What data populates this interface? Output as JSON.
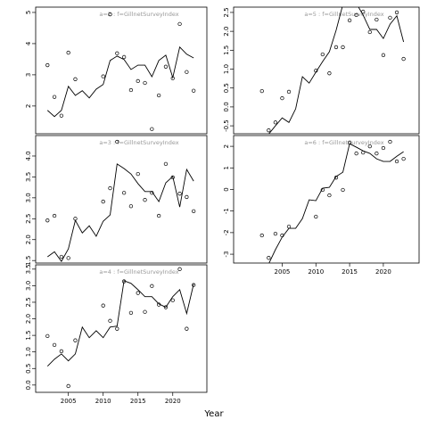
{
  "xlabel": "Year",
  "chart_data": [
    {
      "type": "line",
      "title": "a=2  :  f=GillnetSurveyIndex",
      "x": [
        2002,
        2003,
        2004,
        2005,
        2006,
        2007,
        2008,
        2009,
        2010,
        2011,
        2012,
        2013,
        2014,
        2015,
        2016,
        2017,
        2018,
        2019,
        2020,
        2021,
        2022,
        2023
      ],
      "points": [
        3.31,
        2.29,
        1.69,
        3.71,
        2.86,
        null,
        null,
        null,
        2.95,
        4.94,
        3.69,
        3.57,
        2.51,
        2.8,
        2.74,
        1.26,
        2.34,
        3.26,
        2.89,
        4.63,
        3.09,
        2.49
      ],
      "fitted": [
        1.86,
        1.66,
        1.86,
        2.63,
        2.34,
        2.49,
        2.26,
        2.54,
        2.69,
        3.46,
        3.6,
        3.49,
        3.17,
        3.31,
        3.31,
        2.94,
        3.46,
        3.63,
        2.91,
        3.89,
        3.66,
        3.54
      ],
      "xlim": [
        2000.3,
        2024.9
      ],
      "xticks": [
        2005,
        2010,
        2015,
        2020
      ],
      "xaxis": false,
      "ylim": [
        1.11,
        5.17
      ],
      "yticks": [
        2,
        3,
        4,
        5
      ]
    },
    {
      "type": "line",
      "title": "a=3  :  f=GillnetSurveyIndex",
      "x": [
        2002,
        2003,
        2004,
        2005,
        2006,
        2007,
        2008,
        2009,
        2010,
        2011,
        2012,
        2013,
        2014,
        2015,
        2016,
        2017,
        2018,
        2019,
        2020,
        2021,
        2022,
        2023
      ],
      "points": [
        2.46,
        2.57,
        1.59,
        1.56,
        2.5,
        null,
        null,
        null,
        2.91,
        3.23,
        4.34,
        3.12,
        2.8,
        3.57,
        2.95,
        3.12,
        2.57,
        3.81,
        3.49,
        3.1,
        3.02,
        2.68
      ],
      "fitted": [
        1.59,
        1.71,
        1.48,
        1.78,
        2.46,
        2.16,
        2.33,
        2.08,
        2.44,
        2.59,
        3.81,
        3.7,
        3.57,
        3.34,
        3.15,
        3.15,
        2.91,
        3.36,
        3.51,
        2.78,
        3.68,
        3.4
      ],
      "xlim": [
        2000.3,
        2024.9
      ],
      "xticks": [
        2005,
        2010,
        2015,
        2020
      ],
      "xaxis": false,
      "ylim": [
        1.44,
        4.49
      ],
      "yticks": [
        1.5,
        {
          "value": 2,
          "label": "2.0"
        },
        2.5,
        {
          "value": 3,
          "label": "3.0"
        },
        3.5,
        {
          "value": 4,
          "label": "4.0"
        }
      ]
    },
    {
      "type": "line",
      "title": "a=4  :  f=GillnetSurveyIndex",
      "x": [
        2002,
        2003,
        2004,
        2005,
        2006,
        2007,
        2008,
        2009,
        2010,
        2011,
        2012,
        2013,
        2014,
        2015,
        2016,
        2017,
        2018,
        2019,
        2020,
        2021,
        2022,
        2023
      ],
      "points": [
        1.48,
        1.21,
        1.02,
        -0.03,
        1.35,
        null,
        null,
        null,
        2.4,
        1.94,
        1.7,
        3.13,
        2.18,
        2.78,
        2.21,
        2.99,
        2.43,
        2.35,
        2.56,
        3.5,
        1.7,
        3.02
      ],
      "fitted": [
        0.57,
        0.78,
        0.94,
        0.73,
        0.94,
        1.75,
        1.43,
        1.64,
        1.43,
        1.75,
        1.78,
        3.15,
        3.07,
        2.88,
        2.67,
        2.67,
        2.45,
        2.35,
        2.67,
        2.88,
        2.16,
        3.05
      ],
      "xlim": [
        2000.3,
        2024.9
      ],
      "xticks": [
        2005,
        2010,
        2015,
        2020
      ],
      "xaxis": true,
      "ylim": [
        -0.22,
        3.63
      ],
      "yticks": [
        {
          "value": 0,
          "label": "0.0"
        },
        0.5,
        {
          "value": 1,
          "label": "1.0"
        },
        1.5,
        {
          "value": 2,
          "label": "2.0"
        },
        2.5,
        {
          "value": 3,
          "label": "3.0"
        },
        3.5
      ]
    },
    {
      "type": "line",
      "title": "a=5  :  f=GillnetSurveyIndex",
      "x": [
        2002,
        2003,
        2004,
        2005,
        2006,
        2007,
        2008,
        2009,
        2010,
        2011,
        2012,
        2013,
        2014,
        2015,
        2016,
        2017,
        2018,
        2019,
        2020,
        2021,
        2022,
        2023
      ],
      "points": [
        0.42,
        -0.62,
        -0.41,
        0.23,
        0.4,
        null,
        null,
        null,
        0.96,
        1.39,
        0.89,
        1.58,
        1.58,
        2.29,
        2.43,
        2.52,
        1.98,
        2.31,
        1.37,
        2.36,
        2.5,
        1.27
      ],
      "fitted": [
        null,
        -0.72,
        -0.5,
        -0.29,
        -0.41,
        -0.05,
        0.8,
        0.63,
        0.92,
        1.2,
        1.46,
        2.03,
        2.71,
        2.83,
        2.74,
        2.43,
        2.05,
        2.05,
        1.81,
        2.19,
        2.41,
        1.72
      ],
      "xlim": [
        1997.8,
        2025.3
      ],
      "xticks": [
        2005,
        2010,
        2015,
        2020
      ],
      "xaxis": false,
      "ylim": [
        -0.71,
        2.64
      ],
      "yticks": [
        -0.5,
        {
          "value": 0,
          "label": "0.0"
        },
        0.5,
        {
          "value": 1,
          "label": "1.0"
        },
        1.5,
        {
          "value": 2,
          "label": "2.0"
        },
        2.5
      ]
    },
    {
      "type": "line",
      "title": "a=6  :  f=GillnetSurveyIndex",
      "x": [
        2002,
        2003,
        2004,
        2005,
        2006,
        2007,
        2008,
        2009,
        2010,
        2011,
        2012,
        2013,
        2014,
        2015,
        2016,
        2017,
        2018,
        2019,
        2020,
        2021,
        2022,
        2023
      ],
      "points": [
        -2.13,
        -3.17,
        -2.05,
        -2.13,
        -1.72,
        null,
        null,
        null,
        -1.26,
        -0.02,
        -0.27,
        0.55,
        -0.02,
        2.17,
        1.67,
        1.71,
        2,
        1.67,
        1.92,
        2.21,
        1.3,
        1.42
      ],
      "fitted": [
        null,
        -3.45,
        -2.79,
        -2.21,
        -1.8,
        -1.8,
        -1.35,
        -0.48,
        -0.52,
        0.06,
        0.1,
        0.6,
        0.8,
        2.12,
        1.96,
        1.79,
        1.67,
        1.42,
        1.3,
        1.3,
        1.54,
        1.75
      ],
      "xlim": [
        1997.8,
        2025.3
      ],
      "xticks": [
        2005,
        2010,
        2015,
        2020
      ],
      "xaxis": true,
      "ylim": [
        -3.41,
        2.5
      ],
      "yticks": [
        -3,
        -2,
        -1,
        0,
        1,
        2
      ]
    }
  ]
}
